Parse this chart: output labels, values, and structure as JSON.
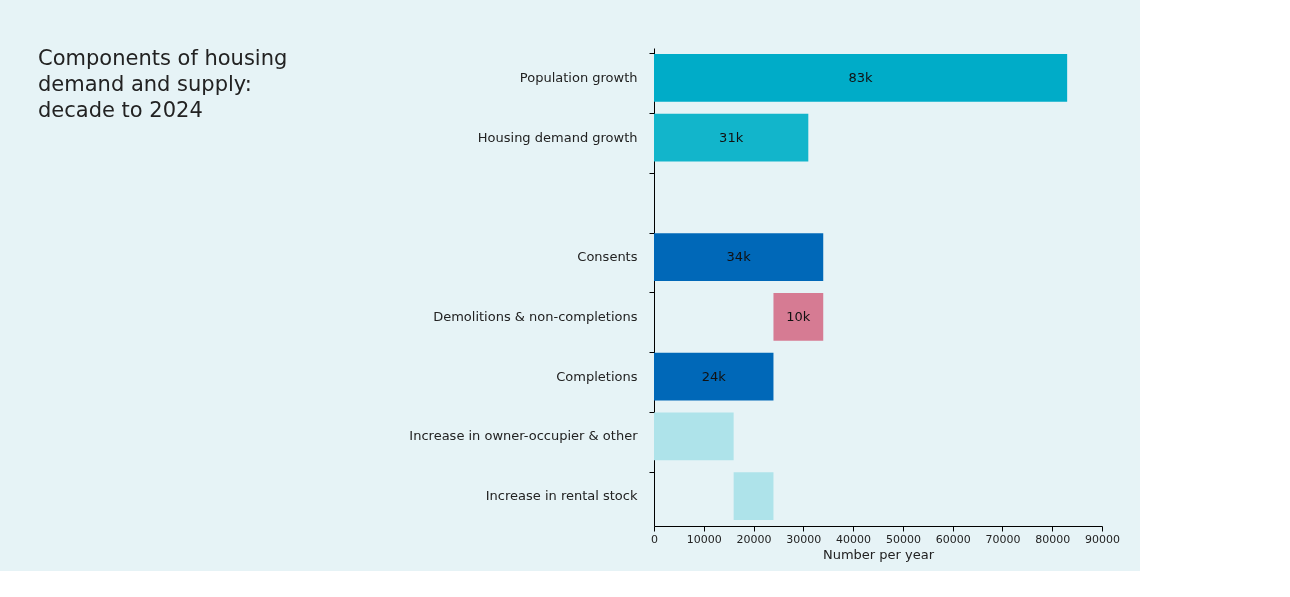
{
  "chart_data": {
    "type": "bar",
    "orientation": "horizontal",
    "title": "Components of housing demand and supply: decade to 2024",
    "categories": [
      "Population growth",
      "Housing demand growth",
      null,
      "Consents",
      "Demolitions & non-completions",
      "Completions",
      "Increase in owner-occupier & other",
      "Increase in rental stock"
    ],
    "values": [
      83000,
      31000,
      null,
      34000,
      10000,
      24000,
      16000,
      8000
    ],
    "base": [
      0,
      0,
      null,
      0,
      24000,
      0,
      0,
      16000
    ],
    "colors": [
      "#00acc8",
      "#12b5cb",
      null,
      "#0068b8",
      "#d67b93",
      "#0068b8",
      "#aee3ea",
      "#aee3ea"
    ],
    "value_labels": [
      "83k",
      "31k",
      null,
      "34k",
      "10k",
      "24k",
      null,
      null
    ],
    "xlabel": "Number per year",
    "xlim": [
      0,
      90000
    ],
    "xticks": [
      0,
      10000,
      20000,
      30000,
      40000,
      50000,
      60000,
      70000,
      80000,
      90000
    ],
    "grid": false
  }
}
